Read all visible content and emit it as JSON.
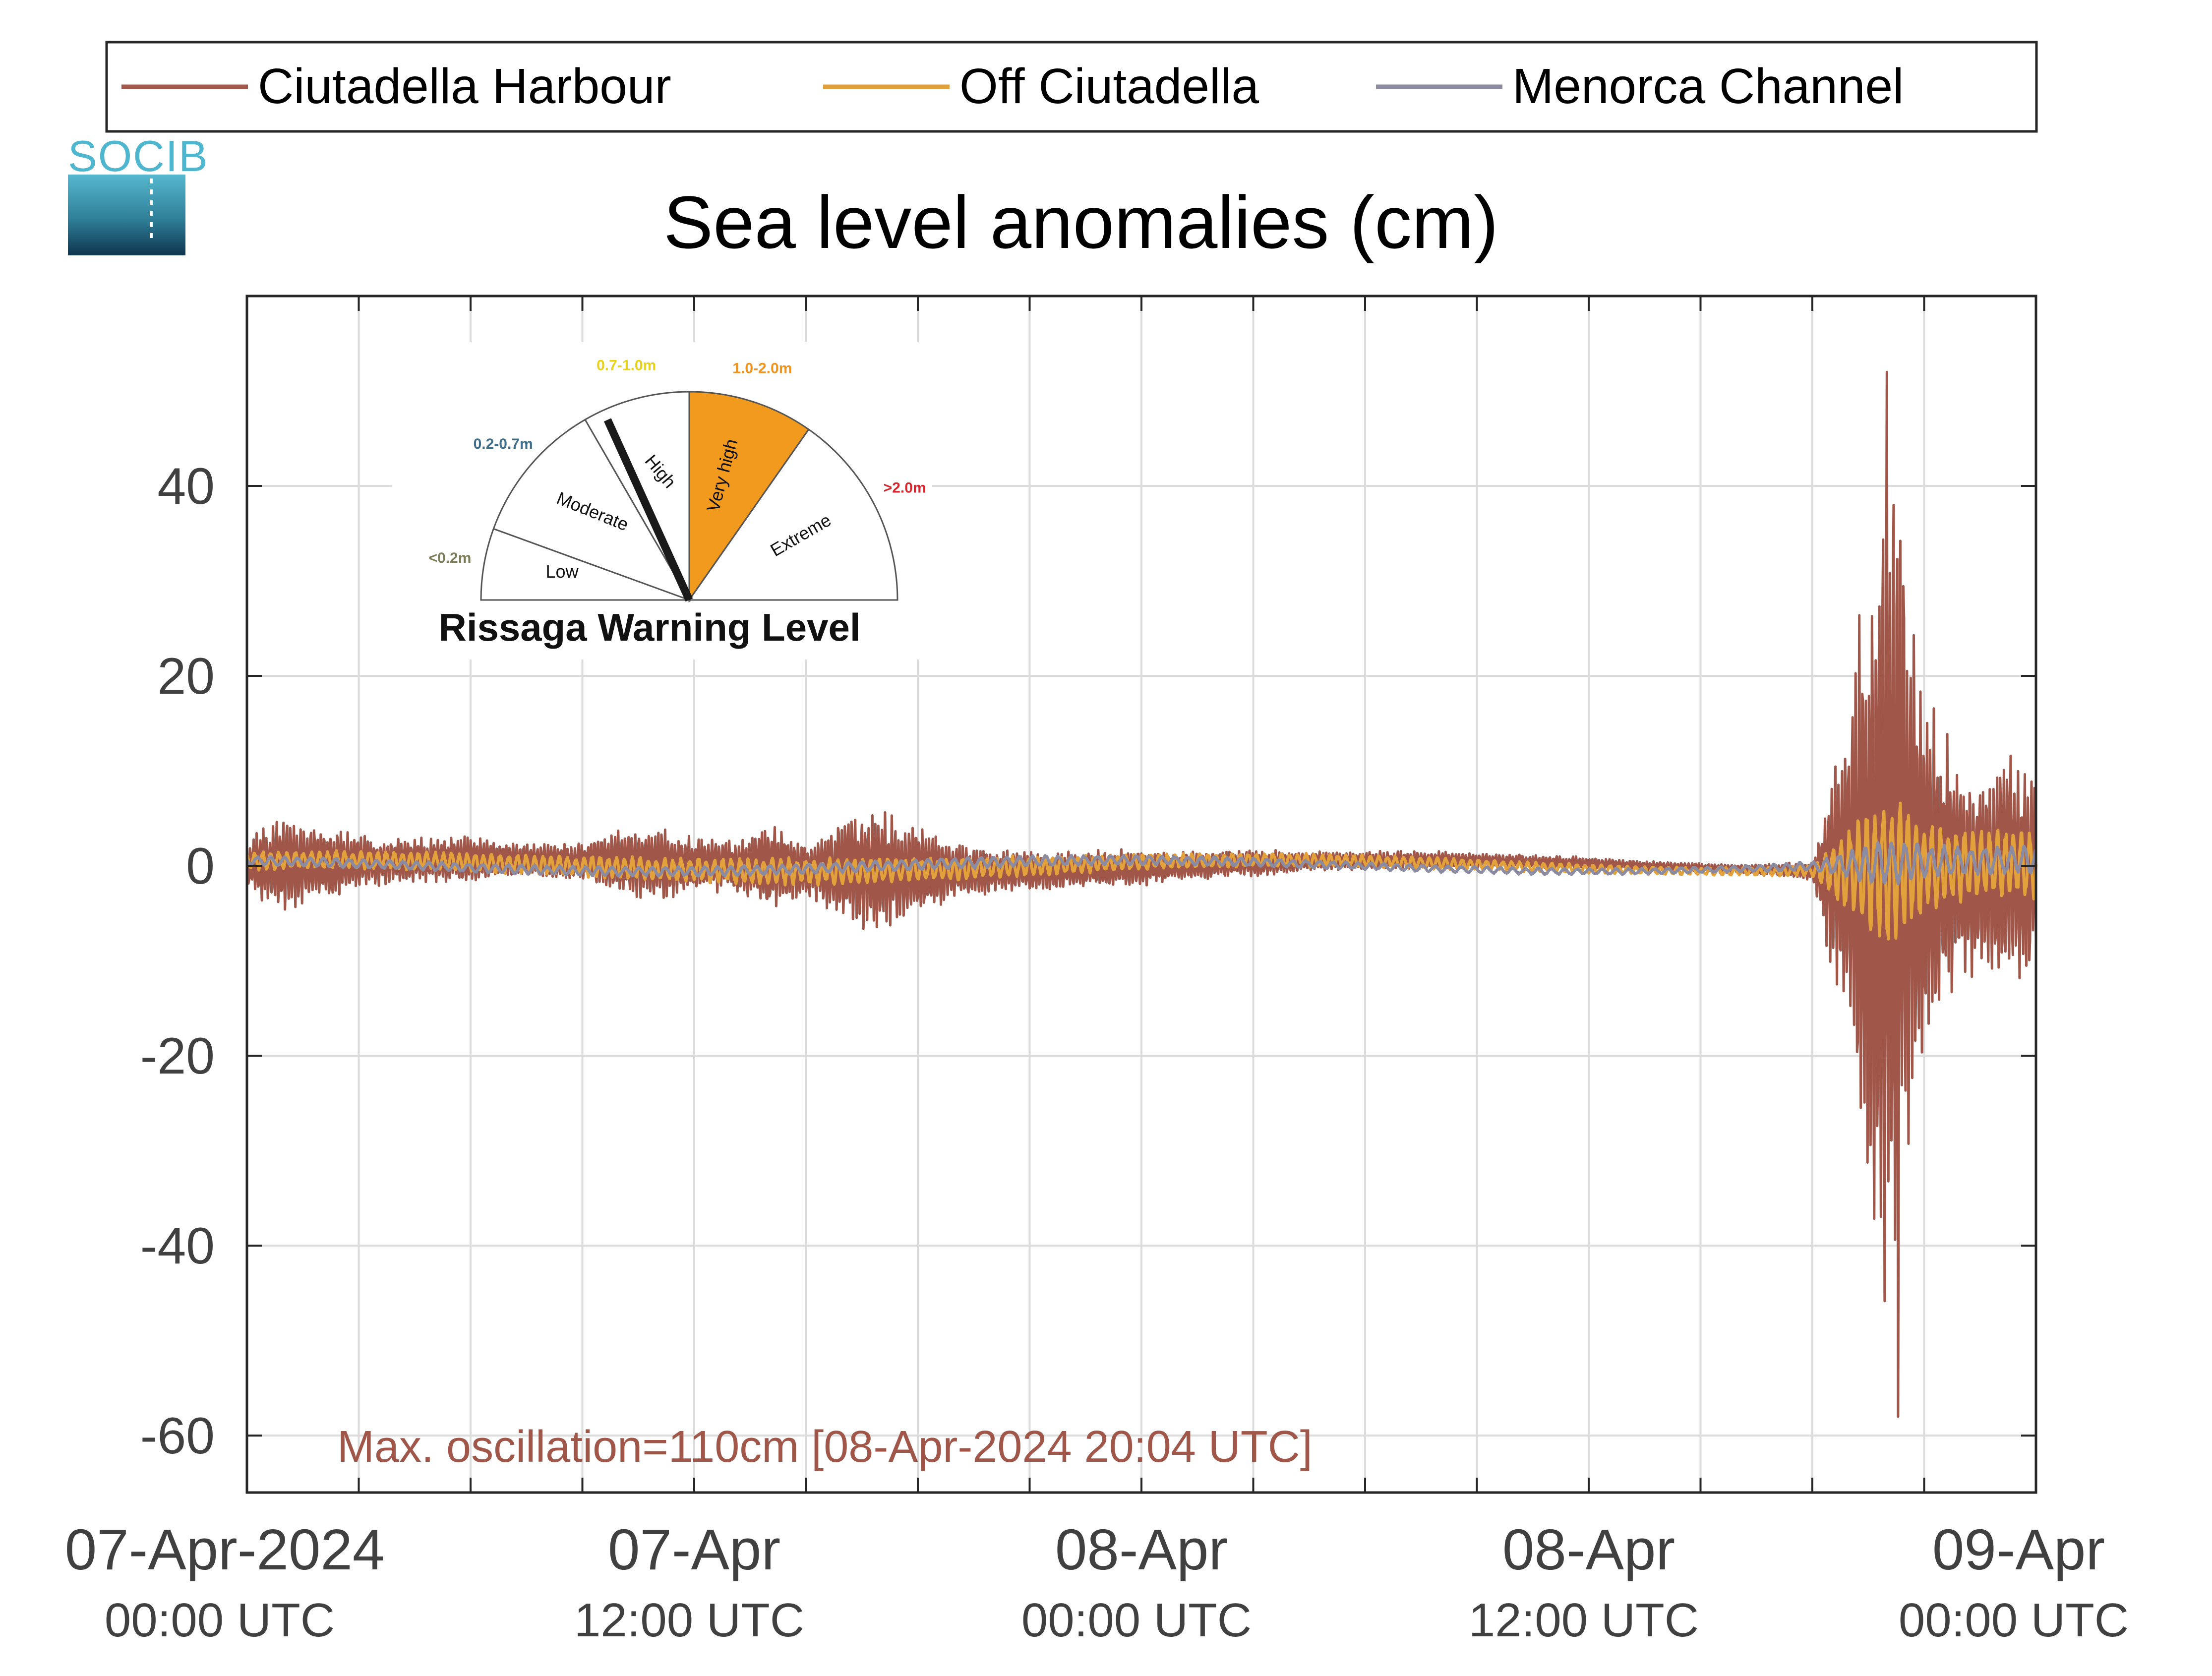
{
  "colors": {
    "ciutadella_harbour": "#a0574a",
    "off_ciutadella": "#e3a13b",
    "menorca_channel": "#8b8ba2",
    "axis": "#262626",
    "grid": "#dcdcdc",
    "annotation": "#a0574a",
    "logo_text": "#4fb6cf"
  },
  "logo": {
    "text": "SOCIB",
    "icon": "socib-logo"
  },
  "legend": {
    "placement": "top",
    "entries": [
      "Ciutadella Harbour",
      "Off Ciutadella",
      "Menorca Channel"
    ]
  },
  "annotation": "Max. oscillation=110cm [08-Apr-2024 20:04 UTC]",
  "gauge": {
    "title": "Rissaga Warning Level",
    "levels": [
      {
        "name": "Low",
        "range": "<0.2m",
        "color": "#7d7d5a",
        "fill": "#ffffff"
      },
      {
        "name": "Moderate",
        "range": "0.2-0.7m",
        "color": "#3f6e8c",
        "fill": "#ffffff"
      },
      {
        "name": "High",
        "range": "0.7-1.0m",
        "color": "#e8d21c",
        "fill": "#ffffff"
      },
      {
        "name": "Very high",
        "range": "1.0-2.0m",
        "color": "#f0941f",
        "fill": "#f29a1e"
      },
      {
        "name": "Extreme",
        "range": ">2.0m",
        "color": "#d7262e",
        "fill": "#ffffff"
      }
    ],
    "active_level": "Very high",
    "needle_fraction": 0.42
  },
  "chart_data": {
    "type": "line",
    "title": "Sea level anomalies (cm)",
    "xlabel": "",
    "ylabel": "",
    "x_range_hours": [
      0,
      48
    ],
    "ylim": [
      -66,
      60
    ],
    "yticks": [
      -60,
      -40,
      -20,
      0,
      20,
      40
    ],
    "xticks": [
      {
        "hour": 0,
        "date": "07-Apr-2024",
        "time": "00:00 UTC"
      },
      {
        "hour": 12,
        "date": "07-Apr",
        "time": "12:00 UTC"
      },
      {
        "hour": 24,
        "date": "08-Apr",
        "time": "00:00 UTC"
      },
      {
        "hour": 36,
        "date": "08-Apr",
        "time": "12:00 UTC"
      },
      {
        "hour": 48,
        "date": "09-Apr",
        "time": "00:00 UTC"
      }
    ],
    "grid": true,
    "legend_placement": "top",
    "x_start": "07-Apr-2024 00:00 UTC",
    "x_end": "09-Apr-2024 00:00 UTC",
    "series": [
      {
        "name": "Ciutadella Harbour",
        "description": "high-frequency oscillation; amplitude envelope (cm) by hour",
        "envelope": [
          [
            0,
            2
          ],
          [
            0.3,
            4
          ],
          [
            1,
            5
          ],
          [
            2,
            4
          ],
          [
            3,
            3
          ],
          [
            4,
            2.5
          ],
          [
            5,
            2.5
          ],
          [
            6,
            2.5
          ],
          [
            7,
            2
          ],
          [
            8,
            2
          ],
          [
            9,
            2
          ],
          [
            10,
            3.5
          ],
          [
            11,
            4
          ],
          [
            12,
            3
          ],
          [
            13,
            3
          ],
          [
            14,
            5
          ],
          [
            15,
            3
          ],
          [
            16,
            6
          ],
          [
            17,
            6.5
          ],
          [
            18,
            5
          ],
          [
            19,
            3
          ],
          [
            20,
            2.5
          ],
          [
            21,
            2
          ],
          [
            22,
            2
          ],
          [
            23,
            2
          ],
          [
            24,
            2
          ],
          [
            25,
            1.5
          ],
          [
            26,
            1.5
          ],
          [
            27,
            1.5
          ],
          [
            28,
            1.2
          ],
          [
            29,
            1
          ],
          [
            30,
            1
          ],
          [
            31,
            1
          ],
          [
            32,
            1
          ],
          [
            33,
            0.8
          ],
          [
            34,
            0.7
          ],
          [
            35,
            0.7
          ],
          [
            36,
            0.7
          ],
          [
            37,
            0.5
          ],
          [
            38,
            0.5
          ],
          [
            39,
            0.5
          ],
          [
            40,
            0.5
          ],
          [
            41,
            0.7
          ],
          [
            42,
            1
          ],
          [
            43,
            20
          ],
          [
            43.5,
            35
          ],
          [
            44,
            50
          ],
          [
            44.5,
            35
          ],
          [
            45,
            20
          ],
          [
            46,
            12
          ],
          [
            47,
            12
          ],
          [
            48,
            12
          ]
        ],
        "max": 52,
        "min": -58
      },
      {
        "name": "Off Ciutadella",
        "description": "moderate oscillation; amplitude envelope (cm) by hour",
        "envelope": [
          [
            0,
            1
          ],
          [
            5,
            1
          ],
          [
            10,
            1.2
          ],
          [
            15,
            1.5
          ],
          [
            20,
            1.2
          ],
          [
            25,
            0.8
          ],
          [
            30,
            0.7
          ],
          [
            35,
            0.5
          ],
          [
            40,
            0.4
          ],
          [
            42,
            0.6
          ],
          [
            43,
            5
          ],
          [
            44,
            9
          ],
          [
            45,
            5
          ],
          [
            46,
            4
          ],
          [
            47,
            4
          ],
          [
            48,
            4
          ]
        ]
      },
      {
        "name": "Menorca Channel",
        "description": "small oscillation; amplitude envelope (cm) by hour",
        "envelope": [
          [
            0,
            0.5
          ],
          [
            10,
            0.5
          ],
          [
            20,
            0.6
          ],
          [
            30,
            0.4
          ],
          [
            40,
            0.3
          ],
          [
            42,
            0.5
          ],
          [
            43,
            1.5
          ],
          [
            44,
            2.5
          ],
          [
            45,
            2
          ],
          [
            46,
            1.5
          ],
          [
            48,
            1.5
          ]
        ]
      }
    ]
  }
}
